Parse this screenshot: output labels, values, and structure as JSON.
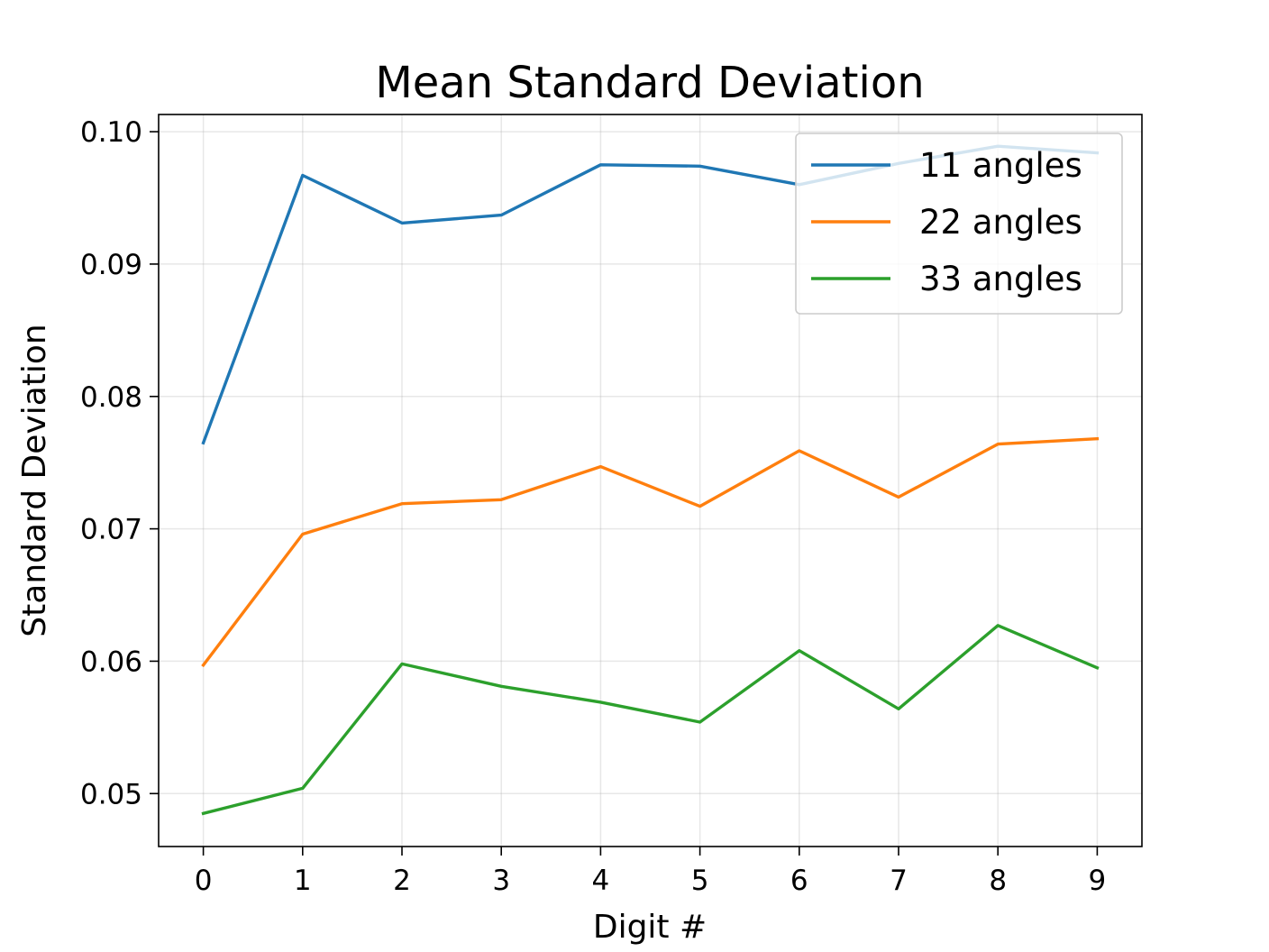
{
  "chart_data": {
    "type": "line",
    "title": "Mean Standard Deviation",
    "xlabel": "Digit #",
    "ylabel": "Standard Deviation",
    "x": [
      0,
      1,
      2,
      3,
      4,
      5,
      6,
      7,
      8,
      9
    ],
    "xlim": [
      -0.45,
      9.45
    ],
    "ylim": [
      0.046,
      0.1013
    ],
    "xticks": [
      0,
      1,
      2,
      3,
      4,
      5,
      6,
      7,
      8,
      9
    ],
    "xtick_labels": [
      "0",
      "1",
      "2",
      "3",
      "4",
      "5",
      "6",
      "7",
      "8",
      "9"
    ],
    "yticks": [
      0.05,
      0.06,
      0.07,
      0.08,
      0.09,
      0.1
    ],
    "ytick_labels": [
      "0.05",
      "0.06",
      "0.07",
      "0.08",
      "0.09",
      "0.10"
    ],
    "grid": true,
    "legend_position": "upper-right",
    "series": [
      {
        "name": "11 angles",
        "color": "#1f77b4",
        "values": [
          0.0765,
          0.0967,
          0.0931,
          0.0937,
          0.0975,
          0.0974,
          0.096,
          0.0976,
          0.0989,
          0.0984
        ]
      },
      {
        "name": "22 angles",
        "color": "#ff7f0e",
        "values": [
          0.0597,
          0.0696,
          0.0719,
          0.0722,
          0.0747,
          0.0717,
          0.0759,
          0.0724,
          0.0764,
          0.0768
        ]
      },
      {
        "name": "33 angles",
        "color": "#2ca02c",
        "values": [
          0.0485,
          0.0504,
          0.0598,
          0.0581,
          0.0569,
          0.0554,
          0.0608,
          0.0564,
          0.0627,
          0.0595
        ]
      }
    ]
  }
}
